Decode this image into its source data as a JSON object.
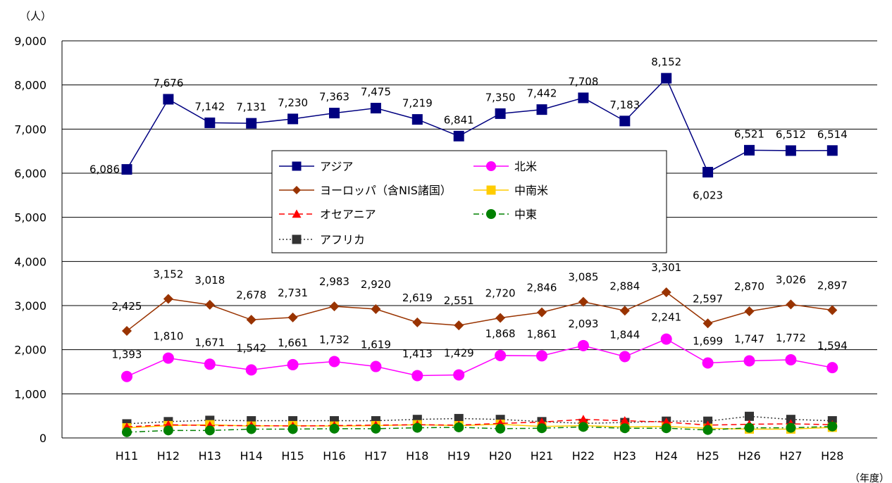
{
  "chart_data": {
    "type": "line",
    "unit_label": "（人）",
    "xlabel": "（年度）",
    "ylim": [
      0,
      9000
    ],
    "yticks": [
      "0",
      "1,000",
      "2,000",
      "3,000",
      "4,000",
      "5,000",
      "6,000",
      "7,000",
      "8,000",
      "9,000"
    ],
    "grid": true,
    "legend_position": "center",
    "categories": [
      "H11",
      "H12",
      "H13",
      "H14",
      "H15",
      "H16",
      "H17",
      "H18",
      "H19",
      "H20",
      "H21",
      "H22",
      "H23",
      "H24",
      "H25",
      "H26",
      "H27",
      "H28"
    ],
    "series": [
      {
        "name": "アジア",
        "color": "#000080",
        "marker": "square",
        "dash": "solid",
        "labeled": true,
        "values": [
          6086,
          7676,
          7142,
          7131,
          7230,
          7363,
          7475,
          7219,
          6841,
          7350,
          7442,
          7708,
          7183,
          8152,
          6023,
          6521,
          6512,
          6514
        ],
        "labels": [
          "6,086",
          "7,676",
          "7,142",
          "7,131",
          "7,230",
          "7,363",
          "7,475",
          "7,219",
          "6,841",
          "7,350",
          "7,442",
          "7,708",
          "7,183",
          "8,152",
          "6,023",
          "6,521",
          "6,512",
          "6,514"
        ]
      },
      {
        "name": "北米",
        "color": "#ff00ff",
        "marker": "circle",
        "dash": "solid",
        "labeled": true,
        "values": [
          1393,
          1810,
          1671,
          1542,
          1661,
          1732,
          1619,
          1413,
          1429,
          1868,
          1861,
          2093,
          1844,
          2241,
          1699,
          1747,
          1772,
          1594
        ],
        "labels": [
          "1,393",
          "1,810",
          "1,671",
          "1,542",
          "1,661",
          "1,732",
          "1,619",
          "1,413",
          "1,429",
          "1,868",
          "1,861",
          "2,093",
          "1,844",
          "2,241",
          "1,699",
          "1,747",
          "1,772",
          "1,594"
        ]
      },
      {
        "name": "ヨーロッパ（含NIS諸国）",
        "color": "#993300",
        "marker": "diamond",
        "dash": "solid",
        "labeled": true,
        "values": [
          2425,
          3152,
          3018,
          2678,
          2731,
          2983,
          2920,
          2619,
          2551,
          2720,
          2846,
          3085,
          2884,
          3301,
          2597,
          2870,
          3026,
          2897
        ],
        "labels": [
          "2,425",
          "3,152",
          "3,018",
          "2,678",
          "2,731",
          "2,983",
          "2,920",
          "2,619",
          "2,551",
          "2,720",
          "2,846",
          "3,085",
          "2,884",
          "3,301",
          "2,597",
          "2,870",
          "3,026",
          "2,897"
        ]
      },
      {
        "name": "中南米",
        "color": "#ffcc00",
        "marker": "square",
        "dash": "solid",
        "labeled": false,
        "values": [
          230,
          280,
          300,
          270,
          280,
          270,
          280,
          300,
          280,
          310,
          260,
          280,
          250,
          260,
          220,
          200,
          200,
          240
        ]
      },
      {
        "name": "オセアニア",
        "color": "#ff0000",
        "marker": "triangle",
        "dash": "dashed",
        "labeled": false,
        "values": [
          250,
          300,
          280,
          280,
          270,
          280,
          290,
          300,
          290,
          330,
          360,
          420,
          390,
          360,
          290,
          310,
          320,
          300
        ]
      },
      {
        "name": "中東",
        "color": "#008000",
        "marker": "circle",
        "dash": "dashdot",
        "labeled": false,
        "values": [
          130,
          170,
          170,
          200,
          200,
          210,
          210,
          230,
          240,
          210,
          220,
          250,
          220,
          220,
          180,
          230,
          230,
          260
        ]
      },
      {
        "name": "アフリカ",
        "color": "#333333",
        "marker": "square",
        "dash": "dotted",
        "labeled": false,
        "values": [
          320,
          370,
          400,
          390,
          390,
          390,
          390,
          420,
          440,
          420,
          370,
          330,
          350,
          380,
          380,
          490,
          420,
          390
        ]
      }
    ]
  }
}
